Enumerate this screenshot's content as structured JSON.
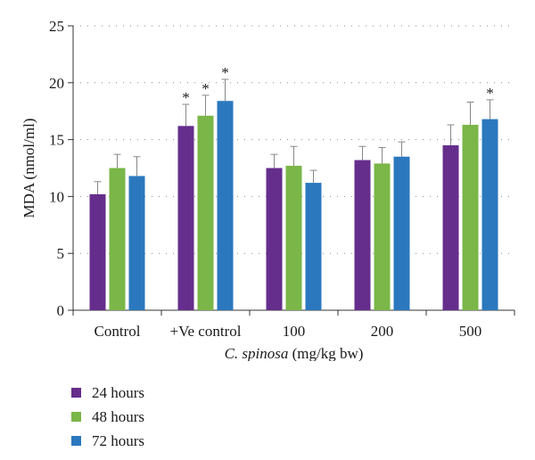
{
  "chart_data": {
    "type": "bar",
    "categories": [
      "Control",
      "+Ve control",
      "100",
      "200",
      "500"
    ],
    "xlabel_italic": "C. spinosa",
    "xlabel_rest": " (mg/kg bw)",
    "ylabel": "MDA (nmol/ml)",
    "ylim": [
      0,
      25
    ],
    "yticks": [
      0,
      5,
      10,
      15,
      20,
      25
    ],
    "grid": "horizontal-dotted",
    "legend_position": "bottom-left",
    "series": [
      {
        "name": "24 hours",
        "color": "#652e8c",
        "values": [
          10.2,
          16.2,
          12.5,
          13.2,
          14.5
        ],
        "errors": [
          1.1,
          1.9,
          1.2,
          1.2,
          1.8
        ],
        "significant": [
          false,
          true,
          false,
          false,
          false
        ]
      },
      {
        "name": "48 hours",
        "color": "#7ab648",
        "values": [
          12.5,
          17.1,
          12.7,
          12.9,
          16.3
        ],
        "errors": [
          1.2,
          1.8,
          1.7,
          1.4,
          2.0
        ],
        "significant": [
          false,
          true,
          false,
          false,
          false
        ]
      },
      {
        "name": "72 hours",
        "color": "#2b78be",
        "values": [
          11.8,
          18.4,
          11.2,
          13.5,
          16.8
        ],
        "errors": [
          1.7,
          1.9,
          1.1,
          1.3,
          1.7
        ],
        "significant": [
          false,
          true,
          false,
          false,
          true
        ]
      }
    ],
    "significance_marker": "*"
  }
}
